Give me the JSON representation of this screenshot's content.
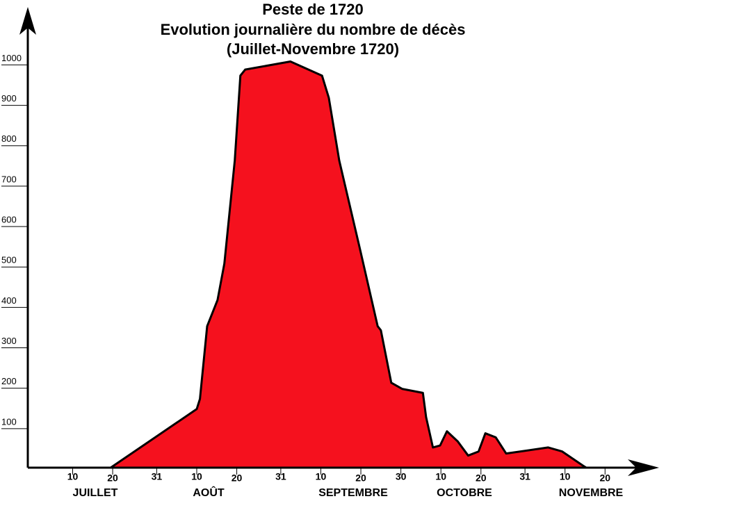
{
  "chart_data": {
    "type": "area",
    "title": [
      "Peste de 1720",
      "Evolution journalière du nombre de décès",
      "(Juillet-Novembre 1720)"
    ],
    "color": "#f5111e",
    "x": [
      19.5,
      41,
      41.8,
      43.6,
      46.2,
      47.9,
      50.5,
      51.9,
      53.1,
      64.4,
      72.3,
      74,
      76.6,
      81.8,
      86.2,
      87,
      89.6,
      92.3,
      97.5,
      98.3,
      100,
      101.8,
      103.5,
      106.2,
      108.8,
      111.4,
      113.1,
      115.7,
      118.3,
      128.8,
      132.3,
      137.5,
      138.3
    ],
    "values": [
      0,
      145,
      170,
      350,
      415,
      505,
      760,
      970,
      985,
      1005,
      970,
      915,
      760,
      540,
      350,
      340,
      210,
      195,
      185,
      125,
      50,
      55,
      90,
      65,
      30,
      40,
      85,
      75,
      35,
      50,
      40,
      5,
      0
    ],
    "xlim": [
      -1.2,
      156.5
    ],
    "ylim": [
      0,
      1140
    ],
    "xticks": [
      {
        "value": 10,
        "label": "10"
      },
      {
        "value": 20,
        "label": "20"
      },
      {
        "value": 31,
        "label": "31"
      },
      {
        "value": 41,
        "label": "10"
      },
      {
        "value": 51,
        "label": "20"
      },
      {
        "value": 62,
        "label": "31"
      },
      {
        "value": 72,
        "label": "10"
      },
      {
        "value": 82,
        "label": "20"
      },
      {
        "value": 92,
        "label": "30"
      },
      {
        "value": 102,
        "label": "10"
      },
      {
        "value": 112,
        "label": "20"
      },
      {
        "value": 123,
        "label": "31"
      },
      {
        "value": 133,
        "label": "10"
      },
      {
        "value": 143,
        "label": "20"
      }
    ],
    "months": [
      "JUILLET",
      "AOÛT",
      "SEPTEMBRE",
      "OCTOBRE",
      "NOVEMBRE"
    ],
    "yticks": [
      100,
      200,
      300,
      400,
      500,
      600,
      700,
      800,
      900,
      1000
    ]
  }
}
